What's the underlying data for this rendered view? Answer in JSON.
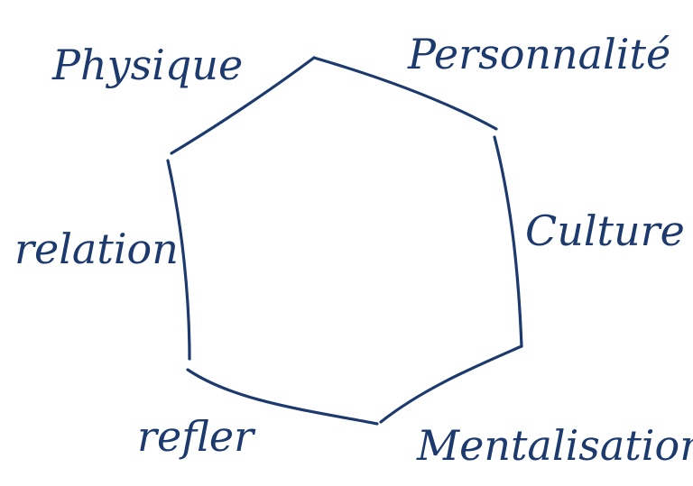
{
  "diagram": {
    "labels": {
      "physique": "Physique",
      "personnalite": "Personnalité",
      "culture": "Culture",
      "mentalisation": "Mentalisation",
      "refler": "refler",
      "relation": "relation"
    },
    "ink_color": "#1d3a6e"
  }
}
